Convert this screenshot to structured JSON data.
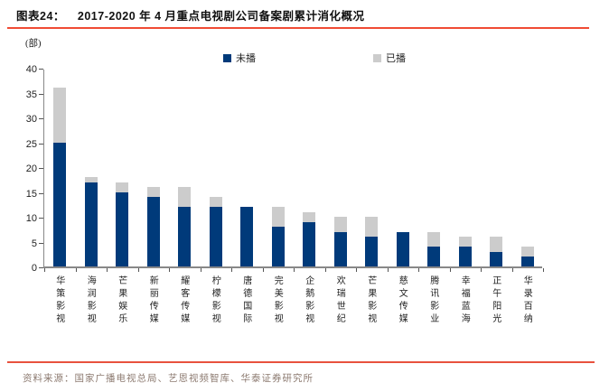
{
  "header": {
    "label": "图表24：",
    "title": "2017-2020 年 4 月重点电视剧公司备案剧累计消化概况"
  },
  "chart_data": {
    "type": "bar",
    "stacked": true,
    "unit_label": "(部)",
    "categories": [
      "华策影视",
      "海润影视",
      "芒果娱乐",
      "新丽传媒",
      "耀客传媒",
      "柠檬影视",
      "唐德国际",
      "完美影视",
      "企鹅影视",
      "欢瑞世纪",
      "芒果影视",
      "慈文传媒",
      "腾讯影业",
      "幸福蓝海",
      "正午阳光",
      "华录百纳"
    ],
    "series": [
      {
        "name": "未播",
        "color": "#003a7a",
        "values": [
          25,
          17,
          15,
          14,
          12,
          12,
          12,
          8,
          9,
          7,
          6,
          7,
          4,
          4,
          3,
          2
        ]
      },
      {
        "name": "已播",
        "color": "#cccccc",
        "values": [
          11,
          1,
          2,
          2,
          4,
          2,
          0,
          4,
          2,
          3,
          4,
          0,
          3,
          2,
          3,
          2
        ]
      }
    ],
    "totals": [
      36,
      18,
      17,
      16,
      16,
      14,
      12,
      12,
      11,
      10,
      10,
      7,
      7,
      6,
      6,
      4
    ],
    "ylim": [
      0,
      40
    ],
    "ytick_step": 5,
    "yticks": [
      0,
      5,
      10,
      15,
      20,
      25,
      30,
      35,
      40
    ],
    "legend_position": "top",
    "grid": false
  },
  "footer": {
    "source": "资料来源：国家广播电视总局、艺恩视频智库、华泰证券研究所"
  },
  "colors": {
    "accent_line": "#f04b35",
    "footer_line": "#e8523e",
    "bar_unaired": "#003a7a",
    "bar_aired": "#cccccc",
    "axis": "#888888",
    "source_text": "#8d7b71"
  }
}
